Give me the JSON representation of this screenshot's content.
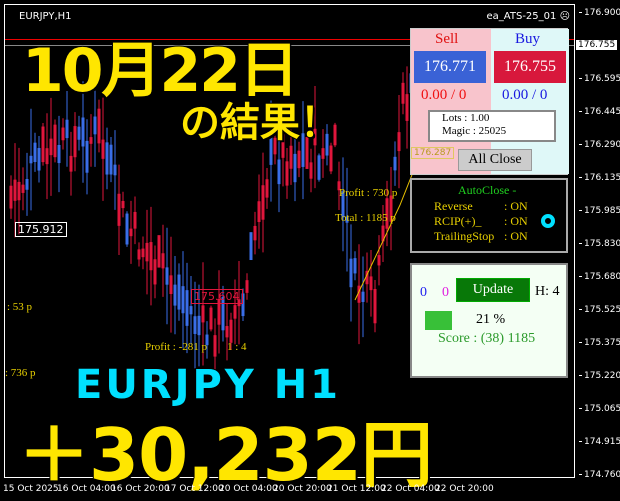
{
  "window": {
    "symbol": "EURJPY,H1",
    "ea_name": "ea_ATS-25_01",
    "ea_status_icon": "frown-face-icon"
  },
  "price_axis": {
    "labels": [
      "176.900",
      "176.595",
      "176.445",
      "176.290",
      "176.135",
      "175.985",
      "175.830",
      "175.680",
      "175.525",
      "175.375",
      "175.220",
      "175.065",
      "174.915",
      "174.760"
    ],
    "current": "176.755"
  },
  "time_axis": [
    "15 Oct 2025",
    "16 Oct 04:00",
    "16 Oct 20:00",
    "17 Oct 12:00",
    "20 Oct 04:00",
    "20 Oct 20:00",
    "21 Oct 12:00",
    "22 Oct 04:00",
    "22 Oct 20:00"
  ],
  "overlay": {
    "date": "10月22日",
    "result": "の結果！",
    "pair": "EURJPY  H1",
    "profit": "＋30,232円"
  },
  "chart_labels": {
    "box1": "175.912",
    "box2": "175.604",
    "box3": "176.287",
    "profit_left1": ": 53 p",
    "profit_left2": ": 736 p",
    "profit_mid": "Profit : -281 p",
    "profit_right": "Profit : 730 p",
    "total_right": "Total : 1185 p",
    "total_mid": "1 : 4"
  },
  "trade_panel": {
    "sell_label": "Sell",
    "buy_label": "Buy",
    "sell_price": "176.771",
    "buy_price": "176.755",
    "sell_pos": "0.00 / 0",
    "buy_pos": "0.00 / 0",
    "lots": "Lots   : 1.00",
    "magic": "Magic : 25025",
    "all_close": "All Close"
  },
  "autoclose_panel": {
    "title": "AutoClose -",
    "rows": [
      {
        "name": "Reverse",
        "value": ": ON"
      },
      {
        "name": "RCIP(+)_",
        "value": ": ON"
      },
      {
        "name": "TrailingStop",
        "value": ": ON"
      }
    ]
  },
  "score_panel": {
    "count_blue": "0",
    "count_magenta": "0",
    "update": "Update",
    "h": "H: 4",
    "percent": "21 %",
    "score": "Score : (38) 1185"
  },
  "colors": {
    "bull": "#3a6ee8",
    "bear": "#e0163c",
    "text_yellow": "#ffe600",
    "cyan": "#00e0ff"
  }
}
